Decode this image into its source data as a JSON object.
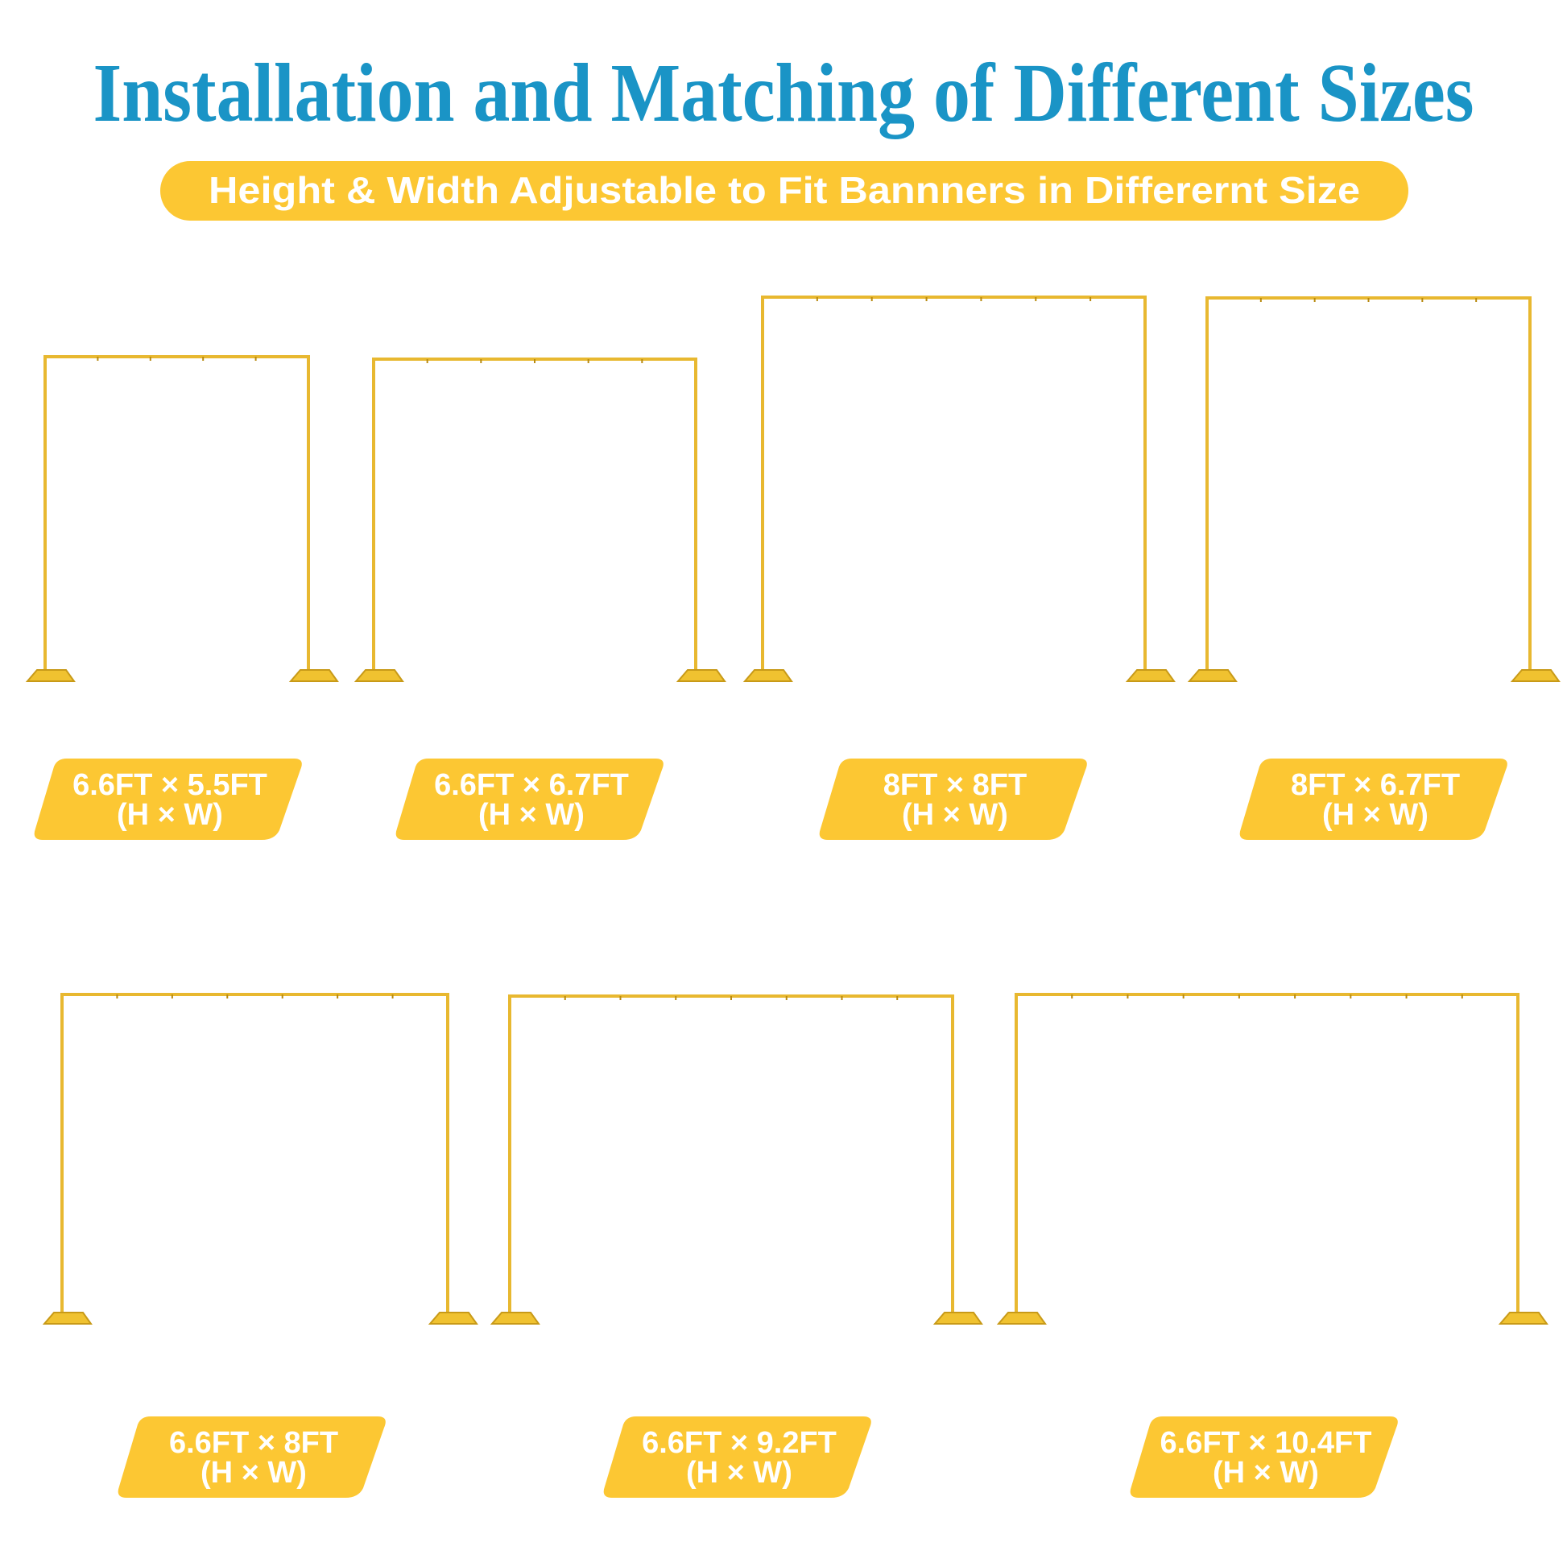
{
  "title": "Installation and Matching of Different Sizes",
  "subtitle": "Height & Width Adjustable to Fit Bannners in Differernt Size",
  "colors": {
    "title": "#1a94c6",
    "accent": "#fcc733",
    "frame": "#e8b830"
  },
  "sizes": [
    {
      "size": "6.6FT × 5.5FT",
      "unit": "(H × W)"
    },
    {
      "size": "6.6FT × 6.7FT",
      "unit": "(H × W)"
    },
    {
      "size": "8FT × 8FT",
      "unit": "(H × W)"
    },
    {
      "size": "8FT × 6.7FT",
      "unit": "(H × W)"
    },
    {
      "size": "6.6FT × 8FT",
      "unit": "(H × W)"
    },
    {
      "size": "6.6FT × 9.2FT",
      "unit": "(H × W)"
    },
    {
      "size": "6.6FT × 10.4FT",
      "unit": "(H × W)"
    }
  ]
}
